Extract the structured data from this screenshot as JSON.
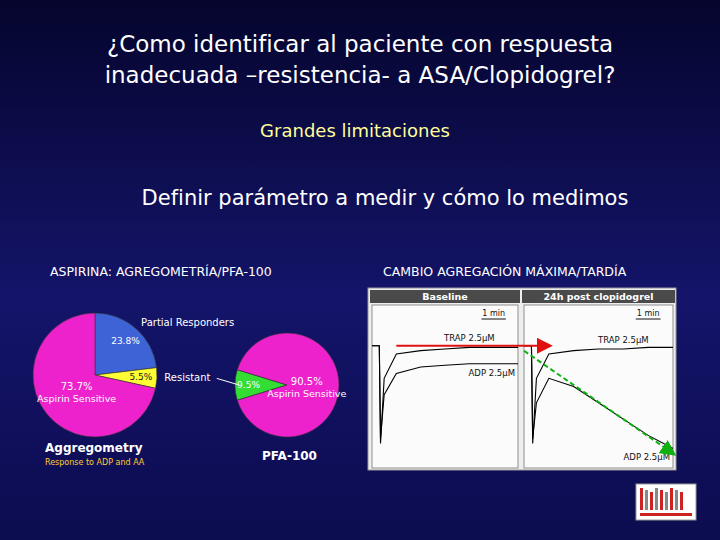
{
  "slide": {
    "title": [
      "¿Como identificar al paciente con respuesta",
      "inadecuada –resistencia- a ASA/Clopidogrel?"
    ],
    "subtitle": "Grandes limitaciones",
    "heading": "Definir parámetro a medir y cómo lo medimos",
    "left_caption": "ASPIRINA: AGREGOMETRÍA/PFA-100",
    "right_caption": "CAMBIO AGREGACIÓN MÁXIMA/TARDÍA"
  },
  "chart_data": [
    {
      "type": "pie",
      "title": "Aggregometry",
      "subtitle": "Response to ADP and AA",
      "categories": [
        "Partial Responders",
        "Resistant",
        "Aspirin Sensitive"
      ],
      "values": [
        23.8,
        5.5,
        73.7
      ],
      "value_labels": [
        "23.8%",
        "5.5%",
        "73.7%"
      ],
      "colors": [
        "#3d63d6",
        "#ffff33",
        "#ee22cc"
      ],
      "data_labels": true
    },
    {
      "type": "pie",
      "title": "PFA-100",
      "categories": [
        null,
        "Aspirin Sensitive"
      ],
      "values": [
        9.5,
        90.5
      ],
      "value_labels": [
        "9.5%",
        "90.5%"
      ],
      "colors": [
        "#33dd33",
        "#ee22cc"
      ],
      "data_labels": true
    },
    {
      "type": "line",
      "title": "Baseline",
      "x": [
        0,
        0.3,
        0.35,
        0.5,
        1,
        2,
        3,
        4,
        5,
        6
      ],
      "series": [
        {
          "name": "TRAP 2.5µM",
          "color": "#000000",
          "values": [
            75,
            75,
            15,
            55,
            70,
            72,
            73,
            74,
            74,
            74
          ]
        },
        {
          "name": "ADP 2.5µM",
          "color": "#000000",
          "values": [
            75,
            75,
            18,
            45,
            58,
            62,
            63,
            64,
            64,
            64
          ]
        }
      ],
      "xlim": [
        0,
        6
      ],
      "ylim": [
        0,
        100
      ],
      "tick_labels": false,
      "scale_bar": {
        "x": [
          4.5,
          5.5
        ],
        "label": "1 min"
      }
    },
    {
      "type": "line",
      "title": "24h post clopidogrel",
      "x": [
        0,
        0.3,
        0.35,
        0.5,
        1,
        2,
        3,
        4,
        5,
        6
      ],
      "series": [
        {
          "name": "TRAP 2.5µM",
          "color": "#000000",
          "values": [
            75,
            75,
            15,
            55,
            70,
            72,
            73,
            73,
            74,
            74
          ]
        },
        {
          "name": "ADP 2.5µM",
          "color": "#000000",
          "values": [
            75,
            75,
            18,
            40,
            55,
            50,
            40,
            30,
            20,
            12
          ]
        }
      ],
      "xlim": [
        0,
        6
      ],
      "ylim": [
        0,
        100
      ],
      "tick_labels": false,
      "scale_bar": {
        "x": [
          4.5,
          5.5
        ],
        "label": "1 min"
      }
    }
  ]
}
